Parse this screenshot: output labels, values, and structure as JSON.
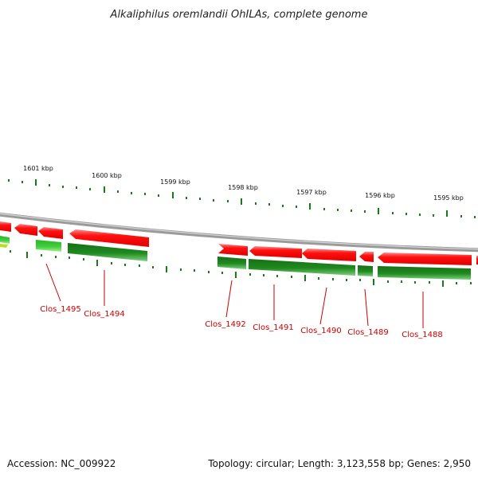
{
  "title": "Alkaliphilus oremlandii OhILAs, complete genome",
  "accession": "Accession: NC_009922",
  "summary": "Topology: circular; Length: 3,123,558 bp; Genes: 2,950",
  "kbp_labels": [
    "1601 kbp",
    "1600 kbp",
    "1599 kbp",
    "1598 kbp",
    "1597 kbp",
    "1596 kbp",
    "1595 kbp"
  ],
  "genes": [
    {
      "label": "Clos_1495"
    },
    {
      "label": "Clos_1494"
    },
    {
      "label": "Clos_1492"
    },
    {
      "label": "Clos_1491"
    },
    {
      "label": "Clos_1490"
    },
    {
      "label": "Clos_1489"
    },
    {
      "label": "Clos_1488"
    }
  ],
  "colors": {
    "forward_gene": "#ff1010",
    "reverse_gene": "#1f8a1f",
    "reverse_gene_light": "#3ccf3c",
    "backbone": "#8a8a8a",
    "tick": "#1a7a1a",
    "gene_label": "#cc0000"
  }
}
